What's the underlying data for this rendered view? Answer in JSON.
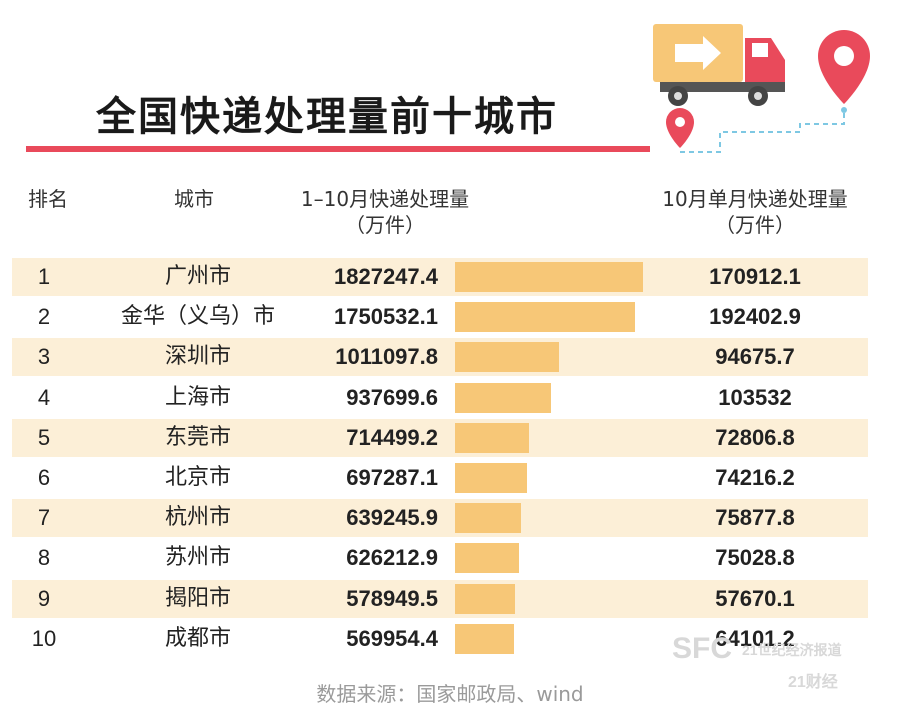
{
  "title": "全国快递处理量前十城市",
  "headers": {
    "rank": "排名",
    "city": "城市",
    "ytd_line1": "1–10月快递处理量",
    "ytd_line2": "（万件）",
    "oct_line1": "10月单月快递处理量",
    "oct_line2": "（万件）"
  },
  "chart_data": {
    "type": "table",
    "title": "全国快递处理量前十城市",
    "columns": [
      "排名",
      "城市",
      "1–10月快递处理量（万件）",
      "10月单月快递处理量（万件）"
    ],
    "bar_column": "1–10月快递处理量（万件）",
    "bar_max": 1827247.4,
    "rows": [
      {
        "rank": "1",
        "city": "广州市",
        "ytd": "1827247.4",
        "ytd_value": 1827247.4,
        "oct": "170912.1"
      },
      {
        "rank": "2",
        "city": "金华（义乌）市",
        "ytd": "1750532.1",
        "ytd_value": 1750532.1,
        "oct": "192402.9"
      },
      {
        "rank": "3",
        "city": "深圳市",
        "ytd": "1011097.8",
        "ytd_value": 1011097.8,
        "oct": "94675.7"
      },
      {
        "rank": "4",
        "city": "上海市",
        "ytd": "937699.6",
        "ytd_value": 937699.6,
        "oct": "103532"
      },
      {
        "rank": "5",
        "city": "东莞市",
        "ytd": "714499.2",
        "ytd_value": 714499.2,
        "oct": "72806.8"
      },
      {
        "rank": "6",
        "city": "北京市",
        "ytd": "697287.1",
        "ytd_value": 697287.1,
        "oct": "74216.2"
      },
      {
        "rank": "7",
        "city": "杭州市",
        "ytd": "639245.9",
        "ytd_value": 639245.9,
        "oct": "75877.8"
      },
      {
        "rank": "8",
        "city": "苏州市",
        "ytd": "626212.9",
        "ytd_value": 626212.9,
        "oct": "75028.8"
      },
      {
        "rank": "9",
        "city": "揭阳市",
        "ytd": "578949.5",
        "ytd_value": 578949.5,
        "oct": "57670.1"
      },
      {
        "rank": "10",
        "city": "成都市",
        "ytd": "569954.4",
        "ytd_value": 569954.4,
        "oct": "64101.2"
      }
    ]
  },
  "source": "数据来源：国家邮政局、wind",
  "watermark": {
    "logo": "SFC",
    "line1": "21世纪经济报道",
    "line2": "21财经"
  },
  "colors": {
    "title_rule": "#e94a5b",
    "row_shade": "#fcefd7",
    "bar": "#f7c777",
    "truck": "#f7c777",
    "pin": "#e94a5b"
  },
  "icons": [
    "delivery-truck-icon",
    "location-pin-icon",
    "small-location-pin-icon"
  ]
}
